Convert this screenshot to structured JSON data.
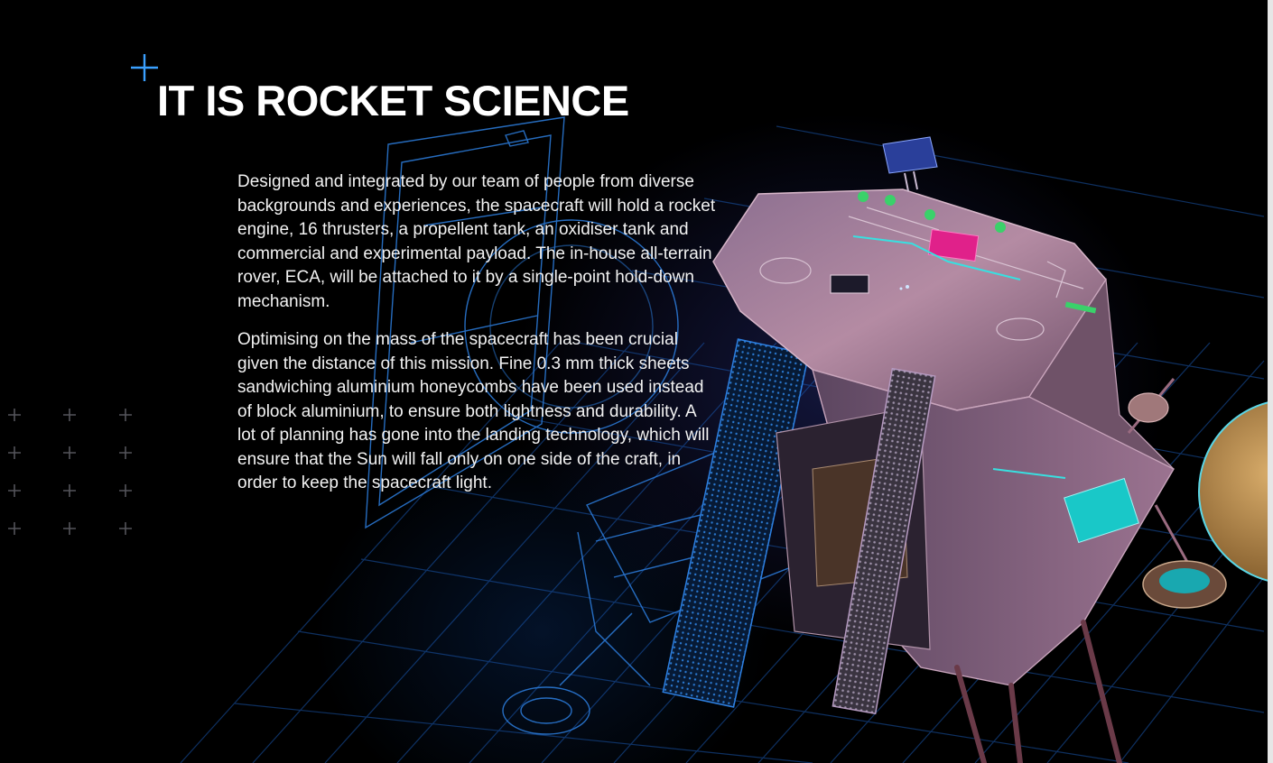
{
  "section": {
    "title": "IT IS ROCKET SCIENCE",
    "paragraphs": [
      "Designed and integrated by our team of people from diverse backgrounds and experiences, the spacecraft will hold a rocket engine, 16 thrusters, a propellent tank, an oxidiser tank and commercial and experimental payload. The in-house all-terrain rover, ECA, will be attached to it by a single-point hold-down mechanism.",
      "Optimising on the mass of the spacecraft has been crucial given the distance of this mission. Fine 0.3 mm thick sheets sandwiching aluminium honeycombs have been used instead of block aluminium, to ensure both lightness and durability. A lot of planning has gone into the landing technology, which will ensure that the Sun will fall only on one side of the craft, in order to keep the spacecraft light."
    ]
  },
  "icons": {
    "title_accent": "plus-icon",
    "decorative_grid": "plus-grid-icon",
    "illustration": "spacecraft-lander-illustration"
  },
  "colors": {
    "background": "#000000",
    "accent_blue": "#3aa0ff",
    "blueprint_line": "#1d6fd6",
    "hull_pink": "#b58aa6",
    "payload_magenta": "#e0218a",
    "payload_cyan": "#19c8c8",
    "fuel_gold": "#b98a4a"
  }
}
